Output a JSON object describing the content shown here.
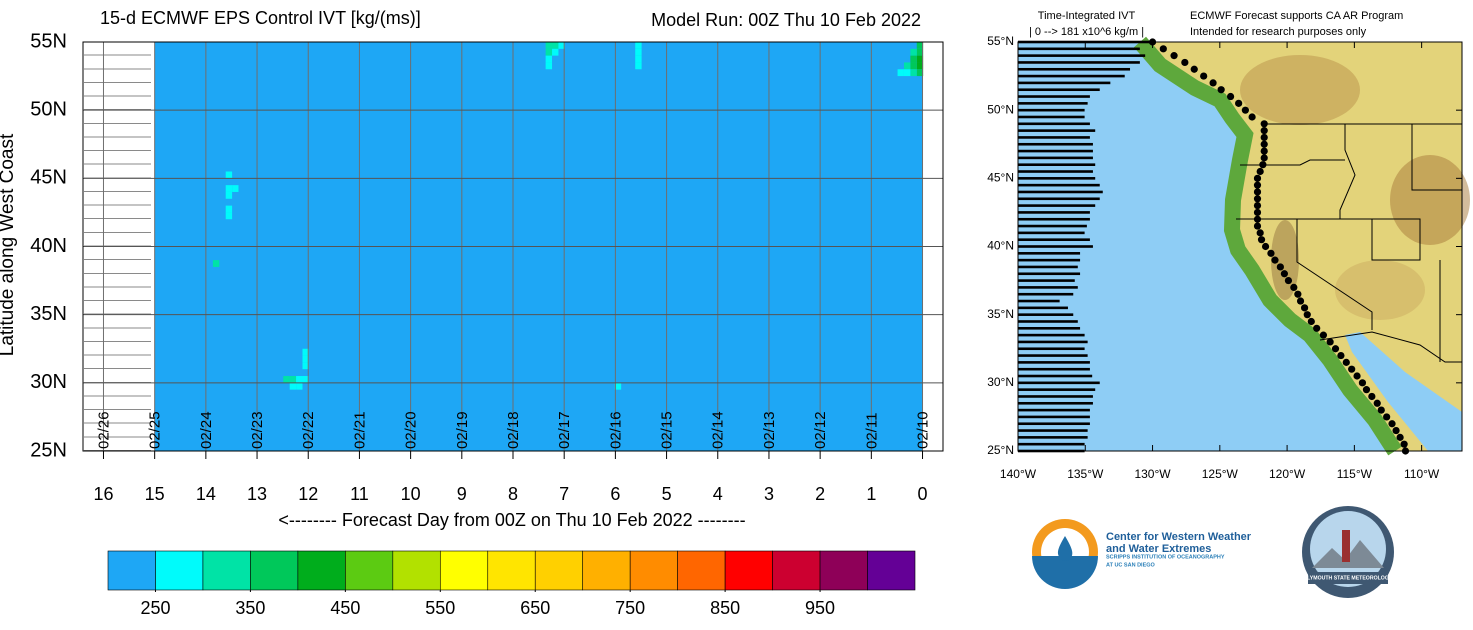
{
  "chart_data": [
    {
      "type": "heatmap",
      "title": "15-d ECMWF EPS Control IVT [kg/(ms)]",
      "subtitle": "Model Run: 00Z Thu 10 Feb 2022",
      "y_label": "Latitude along West Coast",
      "x_label": "<-------- Forecast Day from 00Z on Thu 10 Feb 2022 --------",
      "xlim": [
        16.4,
        -0.4
      ],
      "xticks": [
        16,
        15,
        14,
        13,
        12,
        11,
        10,
        9,
        8,
        7,
        6,
        5,
        4,
        3,
        2,
        1,
        0
      ],
      "date_labels": [
        "02/26",
        "02/25",
        "02/24",
        "02/23",
        "02/22",
        "02/21",
        "02/20",
        "02/19",
        "02/18",
        "02/17",
        "02/16",
        "02/15",
        "02/14",
        "02/13",
        "02/12",
        "02/11",
        "02/10"
      ],
      "ylim": [
        25,
        55
      ],
      "yticks": [
        {
          "value": 25,
          "label": "25N"
        },
        {
          "value": 30,
          "label": "30N"
        },
        {
          "value": 35,
          "label": "35N"
        },
        {
          "value": 40,
          "label": "40N"
        },
        {
          "value": 45,
          "label": "45N"
        },
        {
          "value": 50,
          "label": "50N"
        },
        {
          "value": 55,
          "label": "55N"
        }
      ],
      "field_xlim": [
        15,
        0
      ],
      "colors": [
        "#1ea7f5",
        "#00fbfb",
        "#00e3a6",
        "#00c85a",
        "#00ad1c",
        "#5ccb12",
        "#b2e100",
        "#ffff00",
        "#ffe500",
        "#ffd000",
        "#ffb000",
        "#ff8c00",
        "#ff6600",
        "#ff0000",
        "#cc0030",
        "#8e0058",
        "#640096"
      ],
      "clim": [
        200,
        1050
      ],
      "cbar_ticks": [
        250,
        350,
        450,
        550,
        650,
        750,
        850,
        950
      ],
      "cells": [
        {
          "day": 7.3,
          "lat": 54.75,
          "value": 325
        },
        {
          "day": 7.175,
          "lat": 54.75,
          "value": 325
        },
        {
          "day": 7.05,
          "lat": 54.75,
          "value": 275
        },
        {
          "day": 7.3,
          "lat": 54.25,
          "value": 325
        },
        {
          "day": 7.175,
          "lat": 54.25,
          "value": 275
        },
        {
          "day": 7.3,
          "lat": 53.75,
          "value": 275
        },
        {
          "day": 7.3,
          "lat": 53.25,
          "value": 275
        },
        {
          "day": 5.55,
          "lat": 54.75,
          "value": 275
        },
        {
          "day": 5.55,
          "lat": 54.25,
          "value": 275
        },
        {
          "day": 5.55,
          "lat": 53.75,
          "value": 275
        },
        {
          "day": 5.55,
          "lat": 53.25,
          "value": 275
        },
        {
          "day": 0.05,
          "lat": 54.75,
          "value": 375
        },
        {
          "day": 0.05,
          "lat": 54.25,
          "value": 375
        },
        {
          "day": 0.05,
          "lat": 53.75,
          "value": 425
        },
        {
          "day": 0.05,
          "lat": 53.25,
          "value": 425
        },
        {
          "day": 0.05,
          "lat": 52.75,
          "value": 375
        },
        {
          "day": 0.175,
          "lat": 54.25,
          "value": 325
        },
        {
          "day": 0.175,
          "lat": 53.75,
          "value": 375
        },
        {
          "day": 0.175,
          "lat": 53.25,
          "value": 375
        },
        {
          "day": 0.175,
          "lat": 52.75,
          "value": 325
        },
        {
          "day": 0.3,
          "lat": 53.25,
          "value": 325
        },
        {
          "day": 0.3,
          "lat": 52.75,
          "value": 275
        },
        {
          "day": 0.425,
          "lat": 52.75,
          "value": 275
        },
        {
          "day": 13.55,
          "lat": 45.25,
          "value": 275
        },
        {
          "day": 13.55,
          "lat": 44.25,
          "value": 275
        },
        {
          "day": 13.425,
          "lat": 44.25,
          "value": 275
        },
        {
          "day": 13.55,
          "lat": 43.75,
          "value": 275
        },
        {
          "day": 13.55,
          "lat": 42.75,
          "value": 275
        },
        {
          "day": 13.55,
          "lat": 42.25,
          "value": 275
        },
        {
          "day": 13.8,
          "lat": 38.75,
          "value": 325
        },
        {
          "day": 12.05,
          "lat": 32.25,
          "value": 275
        },
        {
          "day": 12.05,
          "lat": 31.75,
          "value": 275
        },
        {
          "day": 12.05,
          "lat": 31.25,
          "value": 275
        },
        {
          "day": 12.425,
          "lat": 30.25,
          "value": 325
        },
        {
          "day": 12.3,
          "lat": 30.25,
          "value": 325
        },
        {
          "day": 12.175,
          "lat": 30.25,
          "value": 275
        },
        {
          "day": 12.05,
          "lat": 30.25,
          "value": 275
        },
        {
          "day": 12.3,
          "lat": 29.75,
          "value": 275
        },
        {
          "day": 12.175,
          "lat": 29.75,
          "value": 275
        },
        {
          "day": 5.95,
          "lat": 29.75,
          "value": 275
        }
      ]
    },
    {
      "type": "map-bars",
      "title": "Time-Integrated IVT",
      "scale_label": "| 0 --> 181 x10^6 kg/m |",
      "scale": [
        0,
        181
      ],
      "notes": [
        "ECMWF Forecast supports CA AR Program",
        "Intended for research purposes only"
      ],
      "xlim": [
        -140,
        -107
      ],
      "xticks": [
        {
          "value": -140,
          "label": "140°W"
        },
        {
          "value": -135,
          "label": "135°W"
        },
        {
          "value": -130,
          "label": "130°W"
        },
        {
          "value": -125,
          "label": "125°W"
        },
        {
          "value": -120,
          "label": "120°W"
        },
        {
          "value": -115,
          "label": "115°W"
        },
        {
          "value": -110,
          "label": "110°W"
        }
      ],
      "ylim": [
        25,
        55
      ],
      "yticks": [
        {
          "value": 25,
          "label": "25°N"
        },
        {
          "value": 30,
          "label": "30°N"
        },
        {
          "value": 35,
          "label": "35°N"
        },
        {
          "value": 40,
          "label": "40°N"
        },
        {
          "value": 45,
          "label": "45°N"
        },
        {
          "value": 50,
          "label": "50°N"
        },
        {
          "value": 55,
          "label": "55°N"
        }
      ],
      "bar_color": "#000000",
      "point_color": "#000000",
      "lats": [
        55,
        54.5,
        54,
        53.5,
        53,
        52.5,
        52,
        51.5,
        51,
        50.5,
        50,
        49.5,
        49,
        48.5,
        48,
        47.5,
        47,
        46.5,
        46,
        45.5,
        45,
        44.5,
        44,
        43.5,
        43,
        42.5,
        42,
        41.5,
        41,
        40.5,
        40,
        39.5,
        39,
        38.5,
        38,
        37.5,
        37,
        36.5,
        36,
        35.5,
        35,
        34.5,
        34,
        33.5,
        33,
        32.5,
        32,
        31.5,
        31,
        30.5,
        30,
        29.5,
        29,
        28.5,
        28,
        27.5,
        27,
        26.5,
        26,
        25.5,
        25
      ],
      "values": [
        174,
        161,
        168,
        161,
        148,
        141,
        122,
        108,
        95,
        92,
        88,
        88,
        95,
        102,
        95,
        99,
        99,
        99,
        102,
        99,
        102,
        108,
        112,
        108,
        102,
        95,
        95,
        91,
        88,
        95,
        99,
        82,
        82,
        79,
        82,
        75,
        79,
        73,
        55,
        66,
        73,
        79,
        82,
        88,
        92,
        88,
        92,
        95,
        95,
        98,
        108,
        102,
        99,
        99,
        95,
        95,
        95,
        92,
        92,
        88,
        88
      ],
      "points": {
        "lat": [
          55,
          54.5,
          54,
          53.5,
          53,
          52.5,
          52,
          51.5,
          51,
          50.5,
          50,
          49.5,
          49,
          48.5,
          48,
          47.5,
          47,
          46.5,
          46,
          45.5,
          45,
          44.5,
          44,
          43.5,
          43,
          42.5,
          42,
          41.5,
          41,
          40.5,
          40,
          39.5,
          39,
          38.5,
          38,
          37.5,
          37,
          36.5,
          36,
          35.5,
          35,
          34.5,
          34,
          33.5,
          33,
          32.5,
          32,
          31.5,
          31,
          30.5,
          30,
          29.5,
          29,
          28.5,
          28,
          27.5,
          27,
          26.5,
          26,
          25.5,
          25
        ],
        "lon": [
          -130.0,
          -129.2,
          -128.4,
          -127.6,
          -126.9,
          -126.2,
          -125.5,
          -124.9,
          -124.2,
          -123.6,
          -123.1,
          -122.6,
          -121.7,
          -121.7,
          -121.7,
          -121.7,
          -121.7,
          -121.7,
          -121.8,
          -122.0,
          -122.2,
          -122.2,
          -122.2,
          -122.2,
          -122.2,
          -122.2,
          -122.2,
          -122.2,
          -122.0,
          -121.9,
          -121.6,
          -121.2,
          -120.9,
          -120.5,
          -120.2,
          -119.9,
          -119.5,
          -119.2,
          -119.0,
          -118.7,
          -118.5,
          -118.2,
          -117.8,
          -117.3,
          -116.8,
          -116.4,
          -116.0,
          -115.6,
          -115.2,
          -114.8,
          -114.4,
          -114.1,
          -113.7,
          -113.3,
          -113.0,
          -112.6,
          -112.2,
          -111.9,
          -111.6,
          -111.3,
          -111.2
        ]
      }
    }
  ],
  "logos": {
    "cw3e": [
      "Center for Western Weather",
      "and Water Extremes",
      "SCRIPPS INSTITUTION OF OCEANOGRAPHY",
      "AT UC SAN DIEGO"
    ],
    "plymouth": "PLYMOUTH STATE METEOROLOGY"
  }
}
